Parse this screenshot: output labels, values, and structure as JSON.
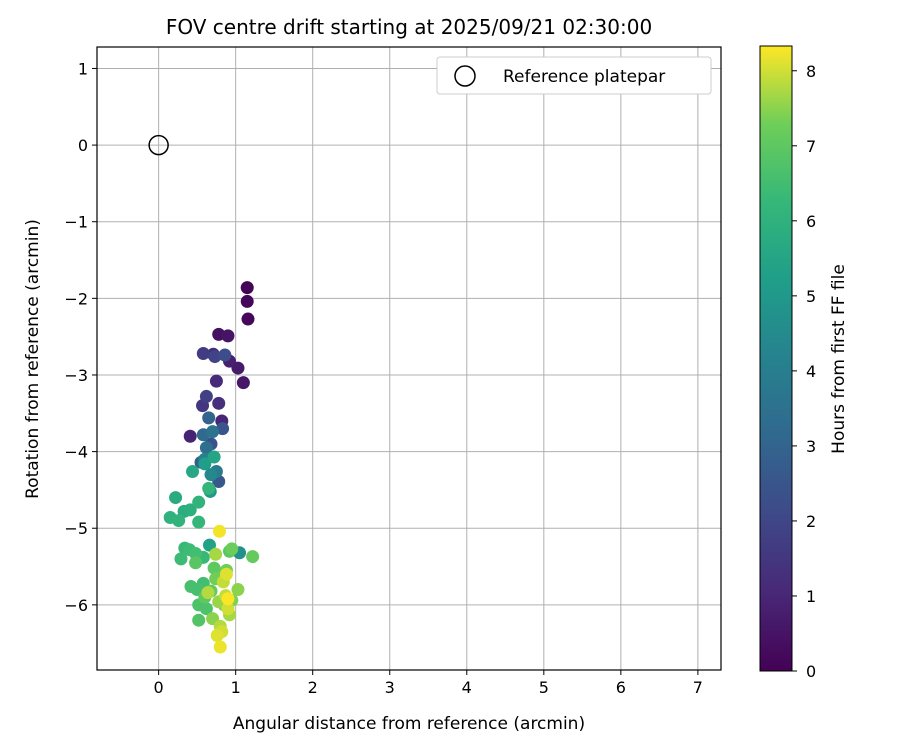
{
  "chart_data": {
    "type": "scatter",
    "title": "FOV centre drift starting at 2025/09/21 02:30:00",
    "xlabel": "Angular distance from reference (arcmin)",
    "ylabel": "Rotation from reference (arcmin)",
    "xlim": [
      -0.8,
      7.3
    ],
    "ylim": [
      -6.85,
      1.28
    ],
    "xticks": [
      0,
      1,
      2,
      3,
      4,
      5,
      6,
      7
    ],
    "yticks": [
      1,
      0,
      -1,
      -2,
      -3,
      -4,
      -5,
      -6
    ],
    "grid": true,
    "legend": {
      "placement": "top-right",
      "entries": [
        "Reference platepar"
      ]
    },
    "reference_point": {
      "x": 0,
      "y": 0,
      "label": "Reference platepar"
    },
    "colorbar": {
      "label": "Hours from first FF file",
      "colormap": "viridis",
      "range": [
        0,
        8.33
      ],
      "ticks": [
        0,
        1,
        2,
        3,
        4,
        5,
        6,
        7,
        8
      ]
    },
    "points": [
      {
        "x": 1.15,
        "y": -1.86,
        "t": 0.1
      },
      {
        "x": 1.15,
        "y": -2.04,
        "t": 0.15
      },
      {
        "x": 1.16,
        "y": -2.27,
        "t": 0.2
      },
      {
        "x": 0.78,
        "y": -2.47,
        "t": 0.4
      },
      {
        "x": 0.9,
        "y": -2.49,
        "t": 0.5
      },
      {
        "x": 1.1,
        "y": -3.1,
        "t": 0.6
      },
      {
        "x": 1.03,
        "y": -2.91,
        "t": 0.7
      },
      {
        "x": 0.92,
        "y": -2.82,
        "t": 0.8
      },
      {
        "x": 0.41,
        "y": -3.8,
        "t": 0.9
      },
      {
        "x": 0.82,
        "y": -3.6,
        "t": 1.0
      },
      {
        "x": 0.75,
        "y": -3.08,
        "t": 1.1
      },
      {
        "x": 0.71,
        "y": -2.73,
        "t": 1.2
      },
      {
        "x": 0.78,
        "y": -3.37,
        "t": 1.3
      },
      {
        "x": 0.57,
        "y": -3.4,
        "t": 1.5
      },
      {
        "x": 0.58,
        "y": -2.72,
        "t": 1.7
      },
      {
        "x": 0.62,
        "y": -3.28,
        "t": 1.8
      },
      {
        "x": 0.73,
        "y": -2.76,
        "t": 1.9
      },
      {
        "x": 0.86,
        "y": -2.74,
        "t": 2.2
      },
      {
        "x": 0.68,
        "y": -3.9,
        "t": 2.4
      },
      {
        "x": 0.83,
        "y": -3.7,
        "t": 2.5
      },
      {
        "x": 0.78,
        "y": -4.39,
        "t": 2.6
      },
      {
        "x": 0.55,
        "y": -4.14,
        "t": 2.8
      },
      {
        "x": 0.65,
        "y": -3.56,
        "t": 3.0
      },
      {
        "x": 0.58,
        "y": -3.78,
        "t": 3.2
      },
      {
        "x": 0.62,
        "y": -3.95,
        "t": 3.4
      },
      {
        "x": 0.7,
        "y": -3.74,
        "t": 3.6
      },
      {
        "x": 0.75,
        "y": -4.26,
        "t": 3.9
      },
      {
        "x": 0.6,
        "y": -4.1,
        "t": 4.1
      },
      {
        "x": 0.68,
        "y": -4.3,
        "t": 4.4
      },
      {
        "x": 1.05,
        "y": -5.32,
        "t": 4.7
      },
      {
        "x": 0.67,
        "y": -4.52,
        "t": 5.0
      },
      {
        "x": 0.6,
        "y": -4.16,
        "t": 5.2
      },
      {
        "x": 0.66,
        "y": -5.22,
        "t": 5.4
      },
      {
        "x": 0.72,
        "y": -4.07,
        "t": 5.5
      },
      {
        "x": 0.44,
        "y": -4.26,
        "t": 5.6
      },
      {
        "x": 0.22,
        "y": -4.6,
        "t": 5.7
      },
      {
        "x": 0.33,
        "y": -4.78,
        "t": 5.8
      },
      {
        "x": 0.41,
        "y": -4.76,
        "t": 5.9
      },
      {
        "x": 0.15,
        "y": -4.86,
        "t": 6.0
      },
      {
        "x": 0.52,
        "y": -4.66,
        "t": 6.1
      },
      {
        "x": 0.26,
        "y": -4.9,
        "t": 6.1
      },
      {
        "x": 0.65,
        "y": -4.48,
        "t": 6.2
      },
      {
        "x": 0.52,
        "y": -4.92,
        "t": 6.2
      },
      {
        "x": 0.58,
        "y": -5.38,
        "t": 6.3
      },
      {
        "x": 0.34,
        "y": -5.26,
        "t": 6.3
      },
      {
        "x": 0.29,
        "y": -5.4,
        "t": 6.4
      },
      {
        "x": 0.4,
        "y": -5.28,
        "t": 6.4
      },
      {
        "x": 0.48,
        "y": -5.33,
        "t": 6.5
      },
      {
        "x": 0.58,
        "y": -5.72,
        "t": 6.5
      },
      {
        "x": 0.42,
        "y": -5.76,
        "t": 6.6
      },
      {
        "x": 0.5,
        "y": -5.8,
        "t": 6.6
      },
      {
        "x": 0.52,
        "y": -6.0,
        "t": 6.7
      },
      {
        "x": 0.62,
        "y": -6.05,
        "t": 6.7
      },
      {
        "x": 0.52,
        "y": -6.2,
        "t": 6.8
      },
      {
        "x": 0.92,
        "y": -5.3,
        "t": 6.9
      },
      {
        "x": 0.48,
        "y": -5.45,
        "t": 6.9
      },
      {
        "x": 0.6,
        "y": -5.9,
        "t": 7.0
      },
      {
        "x": 0.72,
        "y": -5.52,
        "t": 7.0
      },
      {
        "x": 1.22,
        "y": -5.37,
        "t": 7.1
      },
      {
        "x": 0.68,
        "y": -5.82,
        "t": 7.1
      },
      {
        "x": 0.8,
        "y": -5.64,
        "t": 7.2
      },
      {
        "x": 0.95,
        "y": -5.27,
        "t": 7.2
      },
      {
        "x": 0.88,
        "y": -5.55,
        "t": 7.3
      },
      {
        "x": 0.74,
        "y": -5.66,
        "t": 7.3
      },
      {
        "x": 0.85,
        "y": -6.0,
        "t": 7.4
      },
      {
        "x": 0.95,
        "y": -5.94,
        "t": 7.4
      },
      {
        "x": 0.7,
        "y": -6.18,
        "t": 7.5
      },
      {
        "x": 1.03,
        "y": -5.8,
        "t": 7.5
      },
      {
        "x": 0.78,
        "y": -5.96,
        "t": 7.6
      },
      {
        "x": 0.74,
        "y": -5.34,
        "t": 7.7
      },
      {
        "x": 0.92,
        "y": -6.13,
        "t": 7.7
      },
      {
        "x": 0.8,
        "y": -6.28,
        "t": 7.8
      },
      {
        "x": 0.64,
        "y": -5.84,
        "t": 7.8
      },
      {
        "x": 0.84,
        "y": -5.7,
        "t": 7.9
      },
      {
        "x": 0.87,
        "y": -5.88,
        "t": 7.9
      },
      {
        "x": 0.9,
        "y": -6.05,
        "t": 8.0
      },
      {
        "x": 0.82,
        "y": -6.35,
        "t": 8.0
      },
      {
        "x": 0.76,
        "y": -6.4,
        "t": 8.1
      },
      {
        "x": 0.88,
        "y": -5.6,
        "t": 8.1
      },
      {
        "x": 0.8,
        "y": -6.55,
        "t": 8.2
      },
      {
        "x": 0.79,
        "y": -5.04,
        "t": 8.25
      },
      {
        "x": 0.9,
        "y": -5.92,
        "t": 8.3
      }
    ]
  }
}
